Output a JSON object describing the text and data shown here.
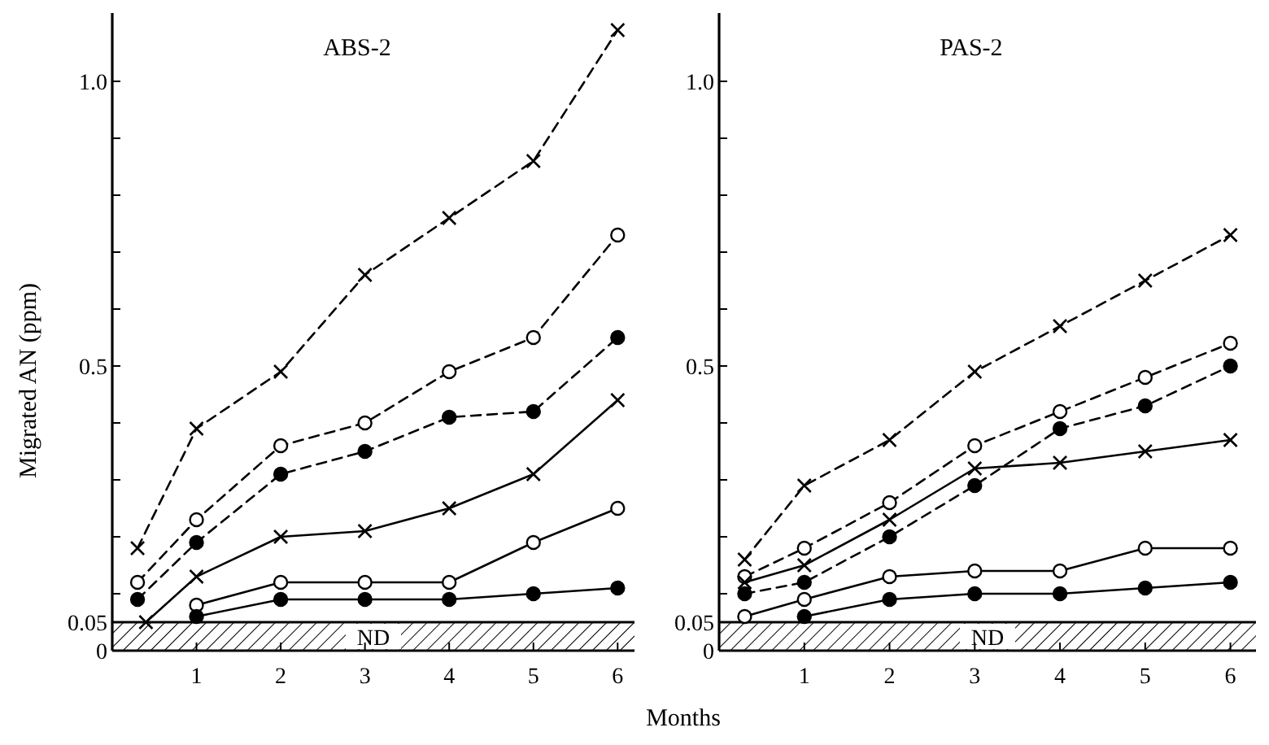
{
  "chart_data": [
    {
      "type": "line",
      "title": "ABS-2",
      "xlabel": "Months",
      "ylabel": "Migrated AN (ppm)",
      "xlim": [
        0,
        6.2
      ],
      "xticks": [
        1,
        2,
        3,
        4,
        5,
        6
      ],
      "ylim": [
        0,
        1.12
      ],
      "yticks": [
        0,
        0.05,
        {
          "value": 0.1,
          "label": null
        },
        {
          "value": 0.2,
          "label": null
        },
        {
          "value": 0.3,
          "label": null
        },
        {
          "value": 0.4,
          "label": null
        },
        0.5,
        {
          "value": 0.6,
          "label": null
        },
        {
          "value": 0.7,
          "label": null
        },
        {
          "value": 0.8,
          "label": null
        },
        {
          "value": 0.9,
          "label": null
        },
        {
          "value": 1,
          "label": "1.0"
        }
      ],
      "bands": [
        {
          "axis": "y",
          "from": 0,
          "to": 0.05,
          "label": "ND"
        }
      ],
      "series": [
        {
          "color": "#000000",
          "marker": "cross",
          "line_style": "dashed",
          "x": [
            0.3,
            1,
            2,
            3,
            4,
            5,
            6
          ],
          "values": [
            0.18,
            0.39,
            0.49,
            0.66,
            0.76,
            0.86,
            1.09
          ]
        },
        {
          "color": "#000000",
          "marker": "circle-open",
          "line_style": "dashed",
          "x": [
            0.3,
            1,
            2,
            3,
            4,
            5,
            6
          ],
          "values": [
            0.12,
            0.23,
            0.36,
            0.4,
            0.49,
            0.55,
            0.73
          ]
        },
        {
          "color": "#000000",
          "marker": "circle",
          "line_style": "dashed",
          "x": [
            0.3,
            1,
            2,
            3,
            4,
            5,
            6
          ],
          "values": [
            0.09,
            0.19,
            0.31,
            0.35,
            0.41,
            0.42,
            0.55
          ]
        },
        {
          "color": "#000000",
          "marker": "cross",
          "line_style": "solid",
          "x": [
            0.4,
            1,
            2,
            3,
            4,
            5,
            6
          ],
          "values": [
            0.05,
            0.13,
            0.2,
            0.21,
            0.25,
            0.31,
            0.44
          ]
        },
        {
          "color": "#000000",
          "marker": "circle-open",
          "line_style": "solid",
          "x": [
            1,
            2,
            3,
            4,
            5,
            6
          ],
          "values": [
            0.08,
            0.12,
            0.12,
            0.12,
            0.19,
            0.25
          ]
        },
        {
          "color": "#000000",
          "marker": "circle",
          "line_style": "solid",
          "x": [
            1,
            2,
            3,
            4,
            5,
            6
          ],
          "values": [
            0.06,
            0.09,
            0.09,
            0.09,
            0.1,
            0.11
          ]
        }
      ]
    },
    {
      "type": "line",
      "title": "PAS-2",
      "xlim": [
        0,
        6.3
      ],
      "xticks": [
        1,
        2,
        3,
        4,
        5,
        6
      ],
      "ylim": [
        0,
        1.12
      ],
      "yticks": [
        0,
        0.05,
        {
          "value": 0.1,
          "label": null
        },
        {
          "value": 0.2,
          "label": null
        },
        {
          "value": 0.3,
          "label": null
        },
        {
          "value": 0.4,
          "label": null
        },
        0.5,
        {
          "value": 0.6,
          "label": null
        },
        {
          "value": 0.7,
          "label": null
        },
        {
          "value": 0.8,
          "label": null
        },
        {
          "value": 0.9,
          "label": null
        },
        {
          "value": 1,
          "label": "1.0"
        }
      ],
      "bands": [
        {
          "axis": "y",
          "from": 0,
          "to": 0.05,
          "label": "ND"
        }
      ],
      "series": [
        {
          "color": "#000000",
          "marker": "cross",
          "line_style": "dashed",
          "x": [
            0.3,
            1,
            2,
            3,
            4,
            5,
            6
          ],
          "values": [
            0.16,
            0.29,
            0.37,
            0.49,
            0.57,
            0.65,
            0.73
          ]
        },
        {
          "color": "#000000",
          "marker": "circle-open",
          "line_style": "dashed",
          "x": [
            0.3,
            1,
            2,
            3,
            4,
            5,
            6
          ],
          "values": [
            0.13,
            0.18,
            0.26,
            0.36,
            0.42,
            0.48,
            0.54
          ]
        },
        {
          "color": "#000000",
          "marker": "circle",
          "line_style": "dashed",
          "x": [
            0.3,
            1,
            2,
            3,
            4,
            5,
            6
          ],
          "values": [
            0.1,
            0.12,
            0.2,
            0.29,
            0.39,
            0.43,
            0.5
          ]
        },
        {
          "color": "#000000",
          "marker": "cross",
          "line_style": "solid",
          "x": [
            0.3,
            1,
            2,
            3,
            4,
            5,
            6
          ],
          "values": [
            0.12,
            0.15,
            0.23,
            0.32,
            0.33,
            0.35,
            0.37
          ]
        },
        {
          "color": "#000000",
          "marker": "circle-open",
          "line_style": "solid",
          "x": [
            0.3,
            1,
            2,
            3,
            4,
            5,
            6
          ],
          "values": [
            0.06,
            0.09,
            0.13,
            0.14,
            0.14,
            0.18,
            0.18
          ]
        },
        {
          "color": "#000000",
          "marker": "circle",
          "line_style": "solid",
          "x": [
            1,
            2,
            3,
            4,
            5,
            6
          ],
          "values": [
            0.06,
            0.09,
            0.1,
            0.1,
            0.11,
            0.12
          ]
        }
      ]
    }
  ]
}
